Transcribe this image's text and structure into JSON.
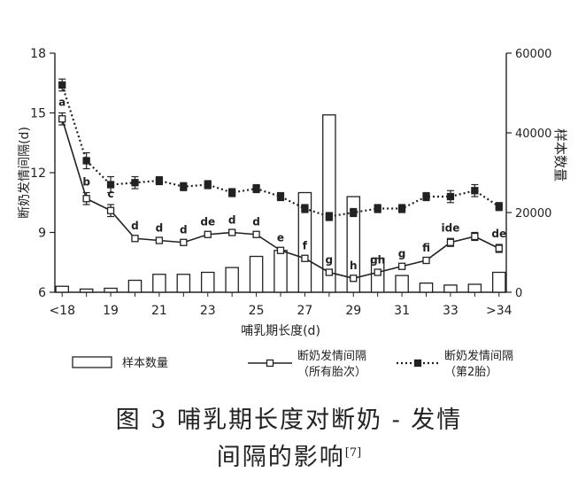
{
  "chart_data": {
    "type": "bar+line",
    "xlabel": "哺乳期长度(d)",
    "ylabel_left": "断奶发情间隔(d)",
    "ylabel_right": "样本数量",
    "ylim_left": [
      6,
      18
    ],
    "ylim_right": [
      0,
      60000
    ],
    "yticks_left": [
      6,
      9,
      12,
      15,
      18
    ],
    "yticks_right": [
      0,
      20000,
      40000,
      60000
    ],
    "categories": [
      "<18",
      "18",
      "19",
      "20",
      "21",
      "22",
      "23",
      "24",
      "25",
      "26",
      "27",
      "28",
      "29",
      "30",
      "31",
      "32",
      "33",
      "34",
      ">34"
    ],
    "x_tick_labels": [
      "<18",
      "19",
      "21",
      "23",
      "25",
      "27",
      "29",
      "31",
      "33",
      ">34"
    ],
    "series": [
      {
        "name": "样本数量",
        "kind": "bar",
        "axis": "right",
        "values": [
          1500,
          800,
          1000,
          3000,
          4500,
          4500,
          5000,
          6200,
          9000,
          10500,
          25000,
          44500,
          24000,
          8500,
          4200,
          2300,
          1800,
          2000,
          5000
        ]
      },
      {
        "name": "断奶发情间隔（所有胎次）",
        "kind": "line",
        "axis": "left",
        "values": [
          14.7,
          10.7,
          10.1,
          8.7,
          8.6,
          8.5,
          8.9,
          9.0,
          8.9,
          8.1,
          7.7,
          7.0,
          6.7,
          7.0,
          7.3,
          7.6,
          8.5,
          8.8,
          8.2
        ],
        "errors": [
          0.3,
          0.3,
          0.3,
          0.1,
          0.1,
          0.1,
          0.1,
          0.1,
          0.1,
          0.1,
          0.1,
          0.1,
          0.1,
          0.1,
          0.1,
          0.1,
          0.2,
          0.2,
          0.2
        ],
        "letters": [
          "a",
          "b",
          "c",
          "d",
          "d",
          "d",
          "de",
          "d",
          "d",
          "e",
          "f",
          "g",
          "h",
          "gh",
          "g",
          "fi",
          "ide",
          "",
          "de"
        ]
      },
      {
        "name": "断奶发情间隔（第2胎）",
        "kind": "dashed-line",
        "axis": "left",
        "values": [
          16.4,
          12.6,
          11.4,
          11.5,
          11.6,
          11.3,
          11.4,
          11.0,
          11.2,
          10.8,
          10.2,
          9.8,
          10.0,
          10.2,
          10.2,
          10.8,
          10.8,
          11.1,
          10.3
        ],
        "errors": [
          0.3,
          0.4,
          0.4,
          0.3,
          0.2,
          0.2,
          0.2,
          0.2,
          0.2,
          0.2,
          0.2,
          0.2,
          0.2,
          0.2,
          0.2,
          0.2,
          0.3,
          0.3,
          0.2
        ]
      }
    ],
    "legend": [
      {
        "label": "样本数量",
        "symbol": "bar"
      },
      {
        "label": "断奶发情间隔",
        "sub": "（所有胎次）",
        "symbol": "solid"
      },
      {
        "label": "断奶发情间隔",
        "sub": "（第2胎）",
        "symbol": "dashed"
      }
    ],
    "legend_position": "bottom"
  },
  "caption": {
    "line1": "图 3  哺乳期长度对断奶 - 发情",
    "line2": "间隔的影响",
    "ref": "[7]"
  }
}
